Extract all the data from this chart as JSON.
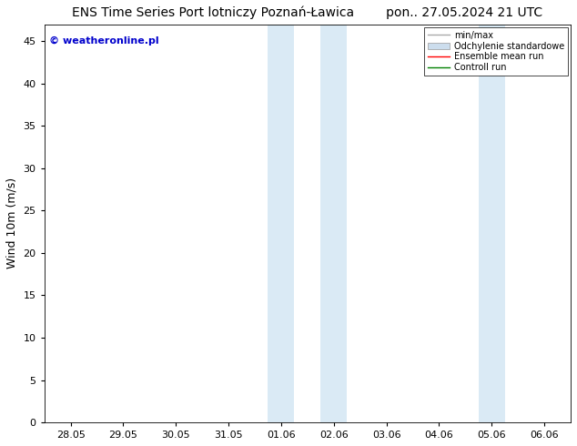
{
  "title": "ENS Time Series Port lotniczy Poznań-Ławica        pon.. 27.05.2024 21 UTC",
  "ylabel": "Wind 10m (m/s)",
  "watermark": "© weatheronline.pl",
  "xtick_labels": [
    "28.05",
    "29.05",
    "30.05",
    "31.05",
    "01.06",
    "02.06",
    "03.06",
    "04.06",
    "05.06",
    "06.06"
  ],
  "xtick_positions": [
    0,
    1,
    2,
    3,
    4,
    5,
    6,
    7,
    8,
    9
  ],
  "ytick_labels": [
    "0",
    "5",
    "10",
    "15",
    "20",
    "25",
    "30",
    "35",
    "40",
    "45"
  ],
  "ytick_positions": [
    0,
    5,
    10,
    15,
    20,
    25,
    30,
    35,
    40,
    45
  ],
  "ylim": [
    0,
    47
  ],
  "xlim": [
    -0.5,
    9.5
  ],
  "shaded_bands": [
    {
      "x_start": 3.75,
      "x_end": 4.25,
      "color": "#daeaf5"
    },
    {
      "x_start": 4.75,
      "x_end": 5.25,
      "color": "#daeaf5"
    },
    {
      "x_start": 7.75,
      "x_end": 8.25,
      "color": "#daeaf5"
    }
  ],
  "legend_items": [
    {
      "label": "min/max",
      "color": "#aaaaaa",
      "lw": 1.0,
      "style": "line"
    },
    {
      "label": "Odchylenie standardowe",
      "color": "#ccdded",
      "lw": 6,
      "style": "band"
    },
    {
      "label": "Ensemble mean run",
      "color": "red",
      "lw": 1.0,
      "style": "line"
    },
    {
      "label": "Controll run",
      "color": "green",
      "lw": 1.0,
      "style": "line"
    }
  ],
  "background_color": "#ffffff",
  "watermark_color": "#0000cc",
  "title_fontsize": 10,
  "axis_fontsize": 9,
  "tick_fontsize": 8,
  "watermark_fontsize": 8
}
